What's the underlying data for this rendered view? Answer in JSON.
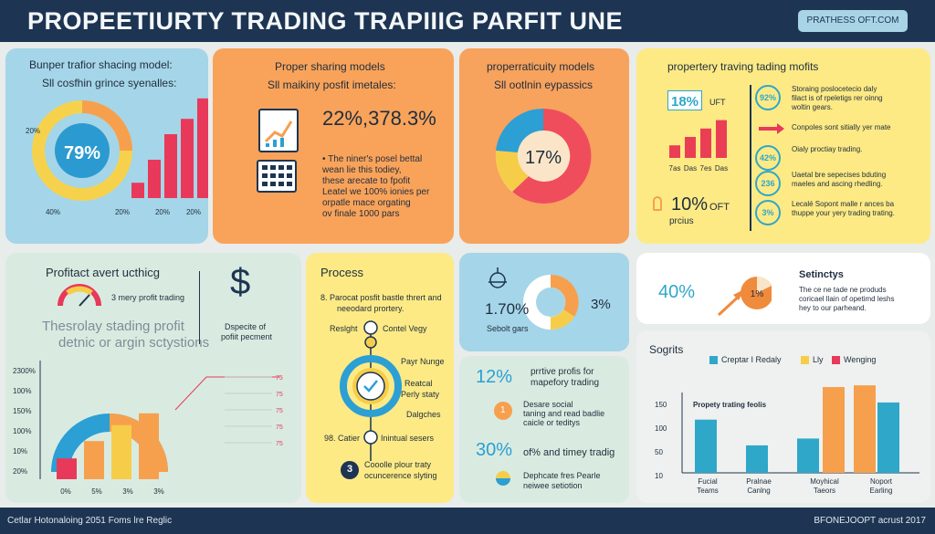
{
  "header": {
    "title": "PROPEETIURTY TRADING TRAPIIIG PARFIT UNE",
    "badge": "PRATHESS OFT.COM"
  },
  "panel1": {
    "title": "Bunper trafior shacing model:",
    "subtitle": "Sll cosfhin grince syenalles:",
    "donut_value": "79%",
    "left_label": "20%",
    "axis": [
      "40%",
      "20%",
      "20%",
      "20%"
    ],
    "bars": [
      0.12,
      0.3,
      0.5,
      0.62,
      0.78
    ],
    "colors": {
      "bg": "#a5d5e8",
      "donut_main": "#f6d24c",
      "donut_accent": "#2b9ad0",
      "bar": "#e8395a"
    }
  },
  "panel2": {
    "title": "Proper sharing models",
    "subtitle": "Sll maikiny posfit imetales:",
    "value": "22%,378.3%",
    "notes": [
      "The niner's posel bettal",
      "wean lie this todiey,",
      "these arecate to fpofit",
      "Leatel we 100% ionies per",
      "orpatle mace orgating",
      "ov finale 1000 pars"
    ],
    "colors": {
      "bg": "#f9a35a"
    }
  },
  "panel3": {
    "title": "properraticuity models",
    "subtitle": "Sll ootlnin eypassics",
    "donut_value": "17%",
    "slices": [
      0.18,
      0.22,
      0.35,
      0.25
    ],
    "colors": {
      "bg": "#f7a25d",
      "s1": "#f6cd49",
      "s2": "#2c9fd4",
      "s3": "#ef4d5c",
      "s4": "#fbe5c8"
    }
  },
  "panel4": {
    "title": "propertery traving tading mofits",
    "stat1": "18%",
    "stat1_unit": "UFT",
    "bar_labels": [
      "7as",
      "Das",
      "7es",
      "Das"
    ],
    "bars": [
      0.3,
      0.5,
      0.7,
      0.9
    ],
    "stat2": "10%",
    "stat2_unit": "OFT",
    "stat2_caption": "prcius",
    "items": [
      {
        "badge": "92%",
        "text": [
          "Storaing poslocetecio daly",
          "filact is of rpeletigs rer oinng",
          "woltin gears."
        ]
      },
      {
        "badge": "arrow",
        "text": [
          "Conpoles sont sitially yer mate"
        ]
      },
      {
        "badge": "42%",
        "text": [
          "Oialy proctiay trading."
        ]
      },
      {
        "badge": "236",
        "text": [
          "Uaetal bre sepecises bduting",
          "maeles and ascing rhedling."
        ]
      },
      {
        "badge": "3%",
        "text": [
          "Lecalé Sopont malle r ances ba",
          "thuppe your yery trading trating."
        ]
      }
    ],
    "colors": {
      "bg": "#fdea85",
      "accent": "#2fa7c9",
      "bar": "#ea3e55",
      "arrow": "#e8395a"
    }
  },
  "panel5": {
    "title": "Profitact avert ucthicg",
    "gauge_caption": "3 mery profit trading",
    "large_text": [
      "Thesrolay stading profit",
      "detnic or argin sctystions"
    ],
    "dollar": "$",
    "dollar_caption": [
      "Dspecite of",
      "pofiit pecment"
    ],
    "y_axis": [
      "2300%",
      "100%",
      "150%",
      "100%",
      "10%",
      "20%"
    ],
    "x_axis": [
      "0%",
      "5%",
      "3%",
      "3%"
    ],
    "right_axis": [
      "75",
      "75",
      "75",
      "75",
      "75"
    ],
    "bars": [
      0.3,
      0.55,
      0.78,
      0.95
    ],
    "colors": {
      "bg": "#d9ebe0",
      "blue": "#2c9fd4",
      "yellow": "#f6cd49",
      "orange": "#f6a04e",
      "red": "#e8395a"
    }
  },
  "panel6": {
    "title": "Process",
    "intro": [
      "8. Parocat posfit bastle thrert and",
      "neeodard prortery."
    ],
    "steps": [
      "Reslght",
      "Contel Vegy",
      "Payr Nunge",
      "Reatcal",
      "Perly staty",
      "Dalgches",
      "98. Catier",
      "Inintual sesers"
    ],
    "closing": [
      "Cooolle plour traty",
      "ocuncerence slyting"
    ],
    "closing_badge": "3",
    "colors": {
      "bg": "#fdea85",
      "ring_blue": "#2c9fd4",
      "ring_yellow": "#f6cd49",
      "dark": "#1d3552"
    }
  },
  "panel7": {
    "value": "1.70%",
    "value2": "3%",
    "caption": "Sebolt gars",
    "colors": {
      "bg": "#a5d5e8",
      "orange": "#f6a04e",
      "yellow": "#f6cd49",
      "white": "#ffffff"
    }
  },
  "panel8": {
    "stat1": "12%",
    "stat1_text": [
      "prrtive profis for",
      "mapefory trading"
    ],
    "item_badge": "1",
    "item_text": [
      "Desare social",
      "taning and read badlie",
      "caicle or teditys"
    ],
    "stat2": "30%",
    "stat2_text": "of% and timey tradig",
    "bottom_text": [
      "Dephcate fres Pearle",
      "neiwee setiotion"
    ],
    "colors": {
      "bg": "#d9ebe0",
      "accent": "#2c9fd4",
      "orange": "#f6a04e",
      "yellow": "#f6cd49"
    }
  },
  "panel9": {
    "value": "40%",
    "pie_label": "1%",
    "title": "Setinctys",
    "text": [
      "The ce ne tade ne produds",
      "coricael llain of opetimd leshs",
      "hey to our parheand."
    ],
    "colors": {
      "bg": "#ffffff",
      "accent": "#2fa7c9",
      "orange": "#f08a3c"
    }
  },
  "panel10": {
    "title": "Sogrits",
    "legend": [
      {
        "name": "Creptar I Redaly",
        "color": "#2fa7c9"
      },
      {
        "name": "Lly",
        "color": "#f6cd49"
      },
      {
        "name": "Wenging",
        "color": "#e8395a"
      }
    ],
    "chart_label": "Propety trating feolis",
    "y_ticks": [
      "150",
      "100",
      "50",
      "10"
    ],
    "groups": [
      {
        "label": [
          "Fucial",
          "Teams"
        ]
      },
      {
        "label": [
          "Pralnae",
          "Canlng"
        ]
      },
      {
        "label": [
          "Moyhical",
          "Taeors"
        ]
      },
      {
        "label": [
          "Noport",
          "Earling"
        ]
      }
    ],
    "bars": [
      0.62,
      0.32,
      0.4,
      1.0,
      1.02,
      0.82
    ],
    "bar_colors": [
      "#2fa7c9",
      "#2fa7c9",
      "#2fa7c9",
      "#f6a04e",
      "#f6a04e",
      "#2fa7c9"
    ]
  },
  "footer": {
    "left": "Cetlar Hotonaloing 2051 Foms lre Reglic",
    "right": "BFONEJOOPT acrust 2017"
  }
}
